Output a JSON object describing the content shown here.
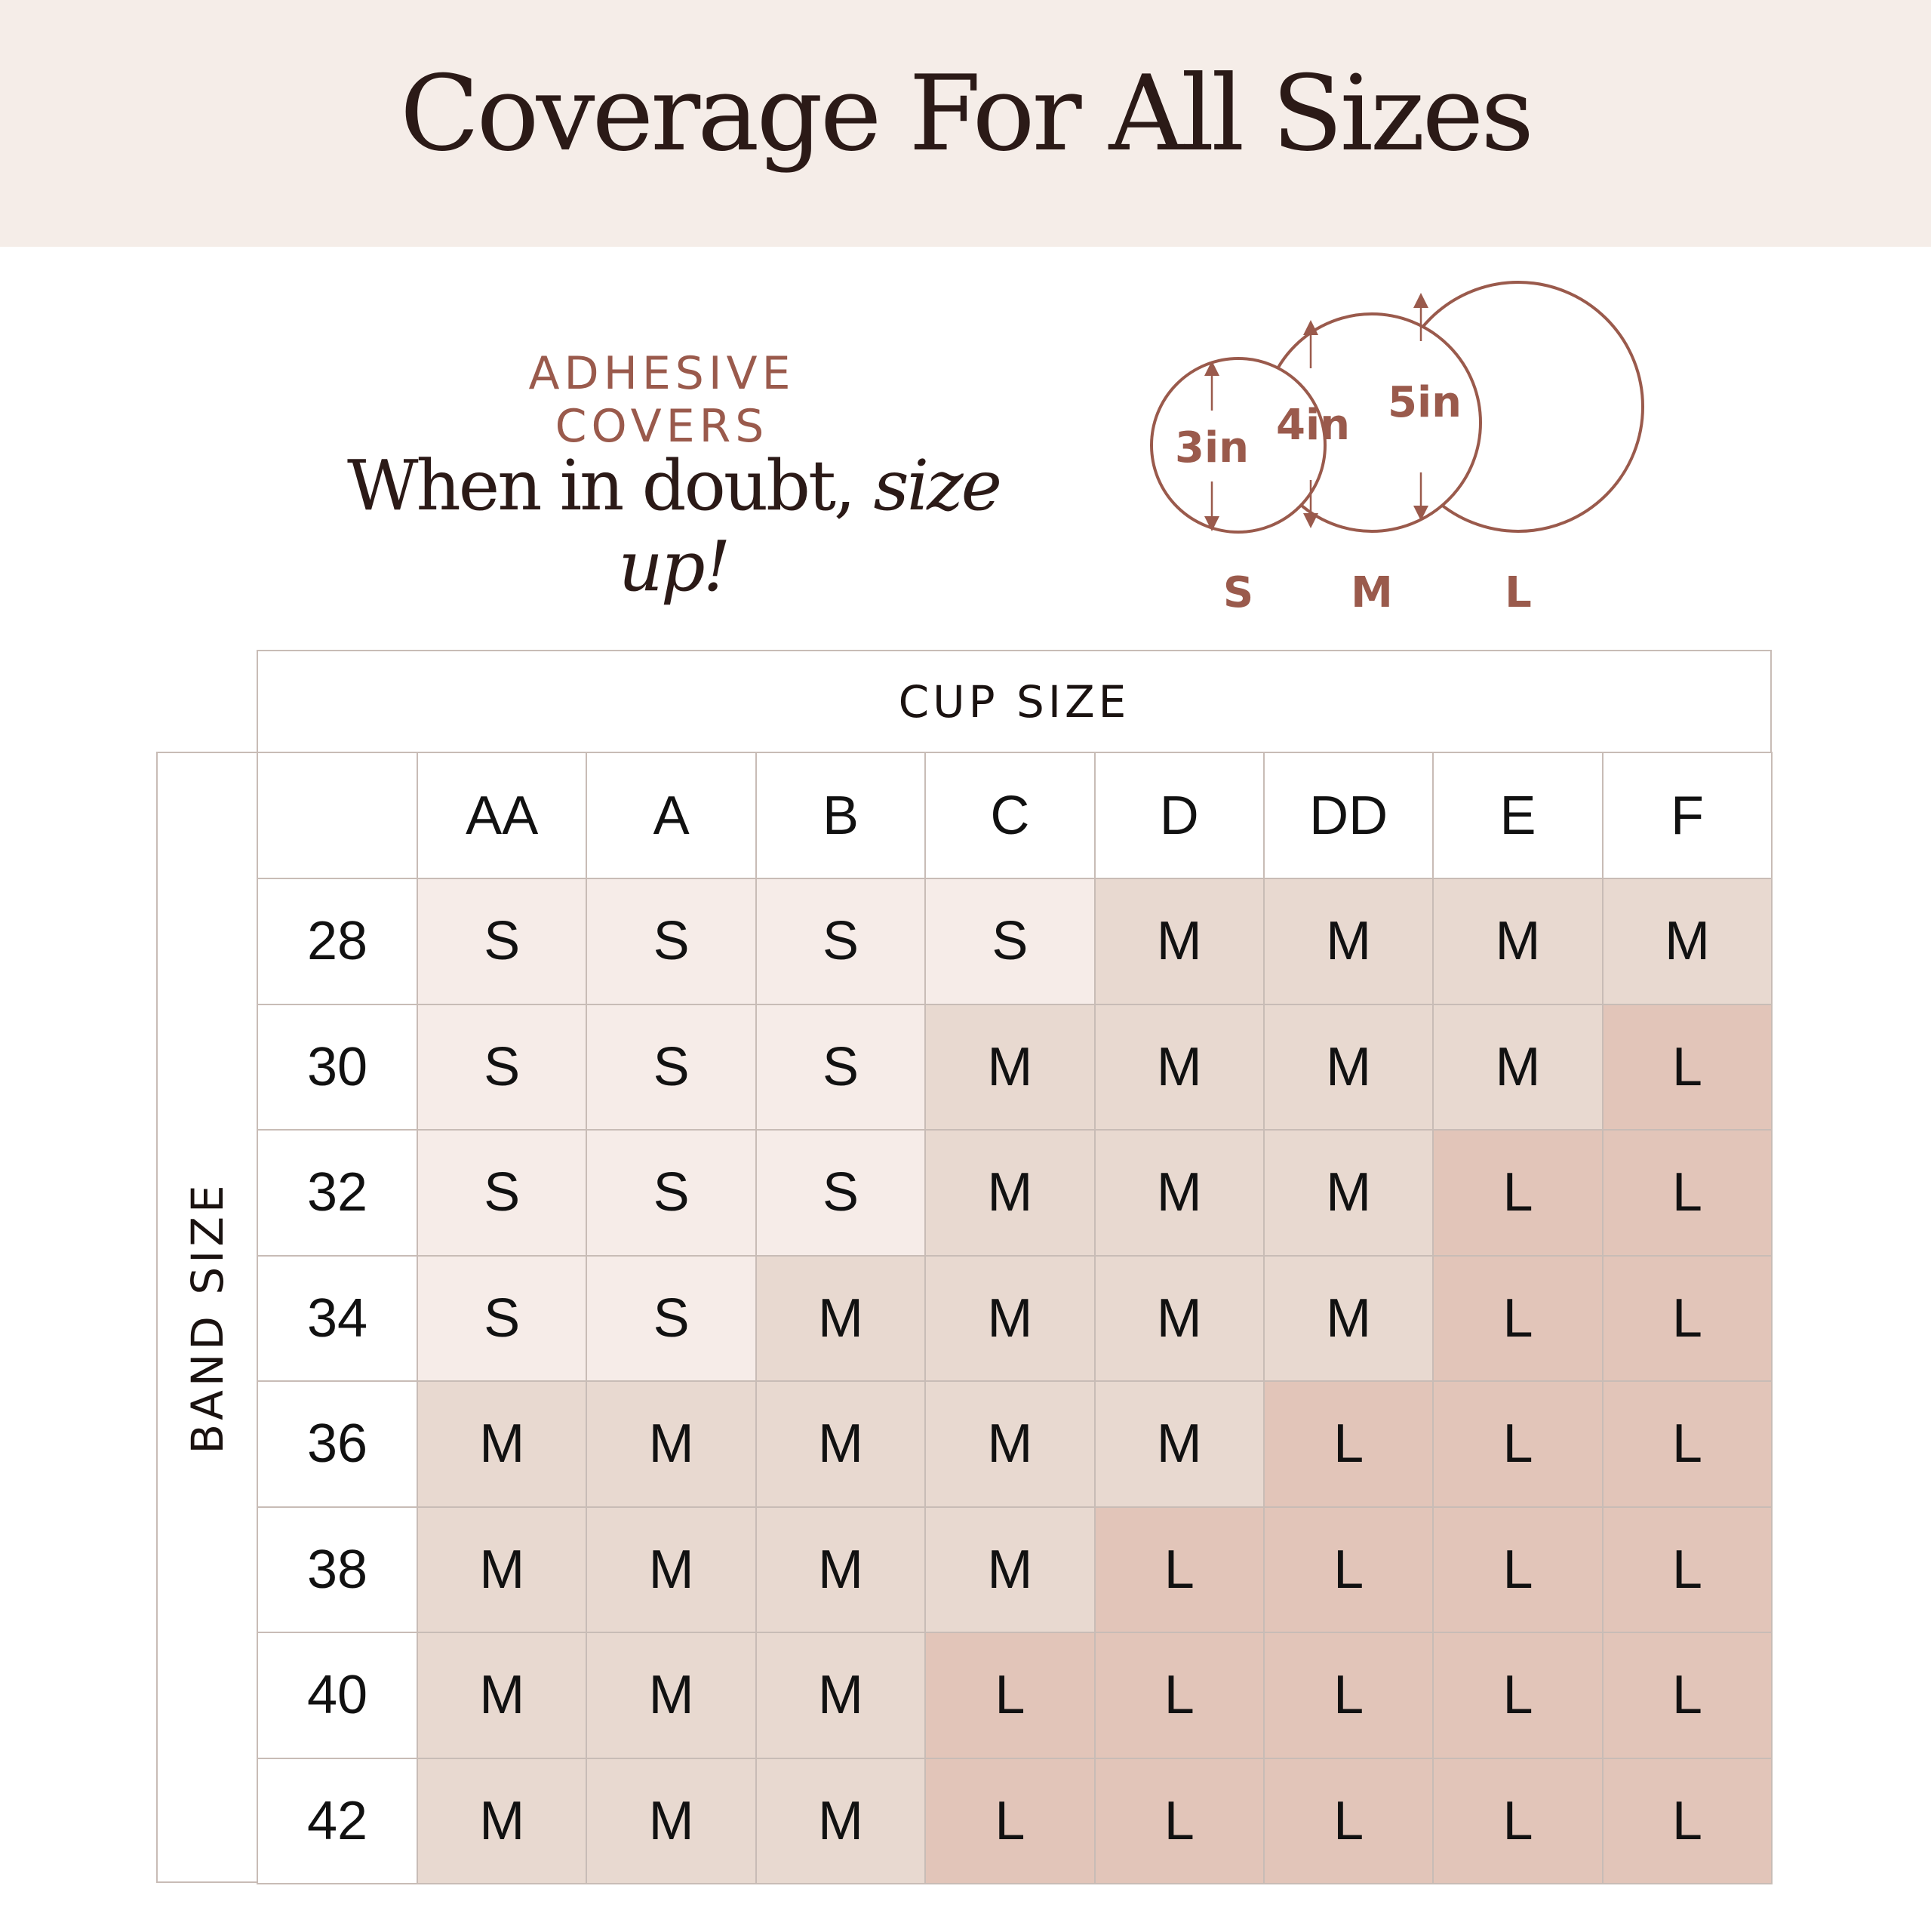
{
  "header": {
    "title": "Coverage For All Sizes"
  },
  "intro": {
    "eyebrow": "ADHESIVE COVERS",
    "tagline_plain": "When in doubt, ",
    "tagline_italic": "size up!"
  },
  "sizes": [
    {
      "label": "S",
      "diameter": "3in"
    },
    {
      "label": "M",
      "diameter": "4in"
    },
    {
      "label": "L",
      "diameter": "5in"
    }
  ],
  "colors": {
    "accent": "#9a5a4c",
    "title": "#2b1a17",
    "header_bg": "#f5ede8",
    "S": "#f6ece8",
    "M": "#e8d9d0",
    "L": "#e2c5b9",
    "grid": "#c8bcb6"
  },
  "table": {
    "col_axis_label": "CUP SIZE",
    "row_axis_label": "BAND SIZE",
    "columns": [
      "AA",
      "A",
      "B",
      "C",
      "D",
      "DD",
      "E",
      "F"
    ],
    "rows": [
      {
        "band": "28",
        "values": [
          "S",
          "S",
          "S",
          "S",
          "M",
          "M",
          "M",
          "M"
        ]
      },
      {
        "band": "30",
        "values": [
          "S",
          "S",
          "S",
          "M",
          "M",
          "M",
          "M",
          "L"
        ]
      },
      {
        "band": "32",
        "values": [
          "S",
          "S",
          "S",
          "M",
          "M",
          "M",
          "L",
          "L"
        ]
      },
      {
        "band": "34",
        "values": [
          "S",
          "S",
          "M",
          "M",
          "M",
          "M",
          "L",
          "L"
        ]
      },
      {
        "band": "36",
        "values": [
          "M",
          "M",
          "M",
          "M",
          "M",
          "L",
          "L",
          "L"
        ]
      },
      {
        "band": "38",
        "values": [
          "M",
          "M",
          "M",
          "M",
          "L",
          "L",
          "L",
          "L"
        ]
      },
      {
        "band": "40",
        "values": [
          "M",
          "M",
          "M",
          "L",
          "L",
          "L",
          "L",
          "L"
        ]
      },
      {
        "band": "42",
        "values": [
          "M",
          "M",
          "M",
          "L",
          "L",
          "L",
          "L",
          "L"
        ]
      }
    ]
  }
}
